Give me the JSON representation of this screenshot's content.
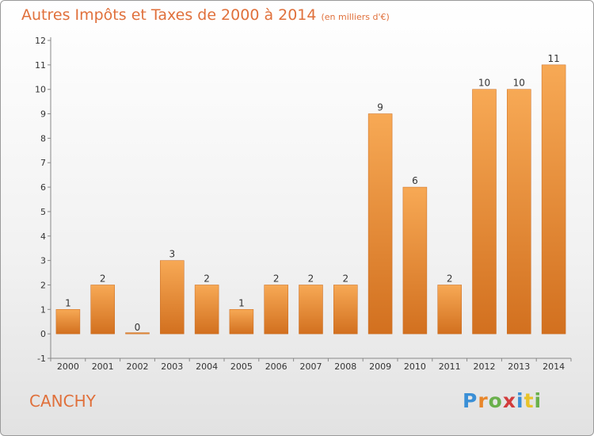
{
  "header": {
    "title": "Autres Impôts et Taxes de 2000 à 2014",
    "unit": "(en milliers d'€)"
  },
  "place_name": "CANCHY",
  "logo": {
    "letters": [
      "P",
      "r",
      "o",
      "x",
      "i",
      "t",
      "i"
    ],
    "colors": [
      "#3a8fd6",
      "#e8862a",
      "#6ab04c",
      "#d23c3c",
      "#3a8fd6",
      "#e8c32a",
      "#6ab04c"
    ]
  },
  "chart_data": {
    "type": "bar",
    "categories": [
      "2000",
      "2001",
      "2002",
      "2003",
      "2004",
      "2005",
      "2006",
      "2007",
      "2008",
      "2009",
      "2010",
      "2011",
      "2012",
      "2013",
      "2014"
    ],
    "values": [
      1,
      2,
      0,
      3,
      2,
      1,
      2,
      2,
      2,
      9,
      6,
      2,
      10,
      10,
      11
    ],
    "yticks": [
      -1,
      0,
      1,
      2,
      3,
      4,
      5,
      6,
      7,
      8,
      9,
      10,
      11,
      12
    ],
    "ylim": [
      -1,
      12
    ],
    "grid": false,
    "bar_color": "#f0923f"
  }
}
